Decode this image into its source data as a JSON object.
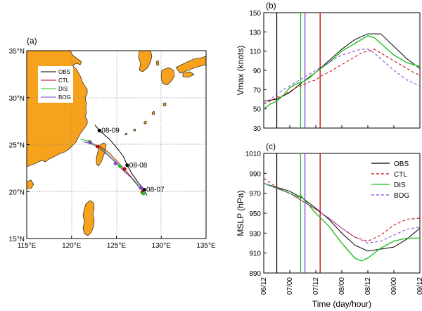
{
  "chart_data": [
    {
      "id": "a",
      "type": "map",
      "title": "(a)",
      "x_ticks": [
        "115°E",
        "120°E",
        "125°E",
        "130°E",
        "135°E"
      ],
      "y_ticks": [
        "15°N",
        "20°N",
        "25°N",
        "30°N",
        "35°N"
      ],
      "xlim": [
        115,
        135
      ],
      "ylim": [
        15,
        35
      ],
      "legend": [
        {
          "name": "OBS",
          "color": "#000000"
        },
        {
          "name": "CTL",
          "color": "#c00000"
        },
        {
          "name": "DIS",
          "color": "#22c022"
        },
        {
          "name": "BOG",
          "color": "#8a3fd1"
        }
      ],
      "date_labels": [
        {
          "text": "08-09",
          "lon": 123.1,
          "lat": 26.5
        },
        {
          "text": "08-08",
          "lon": 126.2,
          "lat": 22.8
        },
        {
          "text": "08-07",
          "lon": 128.1,
          "lat": 20.2
        }
      ],
      "tracks": {
        "OBS": [
          [
            128.4,
            19.6
          ],
          [
            128.1,
            20.2
          ],
          [
            127.4,
            21.0
          ],
          [
            126.8,
            21.8
          ],
          [
            126.2,
            22.8
          ],
          [
            125.8,
            23.7
          ],
          [
            125.1,
            24.6
          ],
          [
            124.2,
            25.6
          ],
          [
            123.1,
            26.5
          ],
          [
            122.6,
            27.1
          ]
        ],
        "CTL": [
          [
            128.0,
            19.9
          ],
          [
            127.3,
            20.8
          ],
          [
            126.6,
            21.6
          ],
          [
            125.9,
            22.4
          ],
          [
            125.0,
            23.3
          ],
          [
            124.2,
            24.1
          ],
          [
            123.3,
            24.7
          ],
          [
            122.4,
            25.1
          ],
          [
            121.7,
            25.4
          ]
        ],
        "DIS": [
          [
            128.1,
            19.8
          ],
          [
            127.4,
            20.6
          ],
          [
            126.6,
            21.5
          ],
          [
            125.7,
            22.4
          ],
          [
            124.8,
            23.3
          ],
          [
            123.8,
            24.2
          ],
          [
            122.8,
            24.9
          ],
          [
            121.8,
            25.4
          ],
          [
            121.0,
            25.6
          ]
        ],
        "BOG": [
          [
            128.2,
            19.7
          ],
          [
            127.6,
            20.5
          ],
          [
            126.9,
            21.3
          ],
          [
            125.9,
            22.1
          ],
          [
            125.0,
            23.0
          ],
          [
            124.0,
            23.9
          ],
          [
            123.1,
            24.6
          ],
          [
            122.2,
            25.1
          ],
          [
            121.3,
            25.3
          ]
        ]
      },
      "markers": [
        {
          "series": "OBS",
          "lon": 123.1,
          "lat": 26.5
        },
        {
          "series": "OBS",
          "lon": 126.2,
          "lat": 22.8
        },
        {
          "series": "OBS",
          "lon": 128.1,
          "lat": 20.2
        },
        {
          "series": "CTL",
          "lon": 122.9,
          "lat": 24.8
        },
        {
          "series": "CTL",
          "lon": 125.9,
          "lat": 22.4
        },
        {
          "series": "CTL",
          "lon": 127.9,
          "lat": 19.9
        },
        {
          "series": "DIS",
          "lon": 122.0,
          "lat": 25.3
        },
        {
          "series": "DIS",
          "lon": 125.4,
          "lat": 22.7
        },
        {
          "series": "DIS",
          "lon": 128.0,
          "lat": 19.8
        },
        {
          "series": "BOG",
          "lon": 122.1,
          "lat": 25.2
        },
        {
          "series": "BOG",
          "lon": 124.9,
          "lat": 23.0
        },
        {
          "series": "BOG",
          "lon": 127.7,
          "lat": 20.4
        }
      ]
    },
    {
      "id": "b",
      "type": "line",
      "title": "(b)",
      "ylabel": "Vmax (knots)",
      "xlabel": "",
      "xlim": [
        0,
        72
      ],
      "ylim": [
        30,
        150
      ],
      "y_ticks": [
        30,
        50,
        70,
        90,
        110,
        130,
        150
      ],
      "x_tick_hours": [
        0,
        12,
        24,
        36,
        48,
        60,
        72
      ],
      "vlines": [
        {
          "hour": 6,
          "color": "#000000"
        },
        {
          "hour": 17,
          "color": "#22c022"
        },
        {
          "hour": 19,
          "color": "#8a3fd1"
        },
        {
          "hour": 26,
          "color": "#c00000"
        }
      ],
      "series": [
        {
          "name": "OBS",
          "color": "#000000",
          "dash": "",
          "x": [
            0,
            6,
            12,
            18,
            24,
            30,
            36,
            42,
            48,
            54,
            60,
            66,
            72
          ],
          "values": [
            58,
            60,
            67,
            78,
            88,
            100,
            112,
            122,
            128,
            128,
            115,
            102,
            92
          ]
        },
        {
          "name": "CTL",
          "color": "#c00000",
          "dash": "4,3",
          "x": [
            0,
            3,
            6,
            9,
            12,
            15,
            18,
            21,
            24,
            27,
            30,
            33,
            36,
            39,
            42,
            45,
            48,
            51,
            54,
            57,
            60,
            63,
            66,
            69,
            72
          ],
          "values": [
            55,
            58,
            62,
            64,
            68,
            72,
            75,
            78,
            80,
            85,
            88,
            92,
            96,
            100,
            104,
            108,
            110,
            112,
            108,
            104,
            100,
            96,
            92,
            88,
            85
          ]
        },
        {
          "name": "DIS",
          "color": "#22c022",
          "dash": "",
          "x": [
            0,
            3,
            6,
            9,
            12,
            15,
            18,
            21,
            24,
            27,
            30,
            33,
            36,
            39,
            42,
            45,
            48,
            51,
            54,
            57,
            60,
            63,
            66,
            69,
            72
          ],
          "values": [
            50,
            55,
            58,
            64,
            72,
            76,
            78,
            82,
            88,
            93,
            98,
            104,
            110,
            114,
            118,
            122,
            126,
            124,
            118,
            112,
            106,
            102,
            98,
            96,
            94
          ]
        },
        {
          "name": "BOG",
          "color": "#8a3fd1",
          "dash": "4,3",
          "x": [
            0,
            3,
            6,
            9,
            12,
            15,
            18,
            21,
            24,
            27,
            30,
            33,
            36,
            39,
            42,
            45,
            48,
            51,
            54,
            57,
            60,
            63,
            66,
            69,
            72
          ],
          "values": [
            55,
            60,
            65,
            70,
            74,
            78,
            82,
            86,
            90,
            94,
            98,
            102,
            106,
            108,
            110,
            112,
            112,
            108,
            102,
            96,
            90,
            85,
            80,
            77,
            74
          ]
        }
      ]
    },
    {
      "id": "c",
      "type": "line",
      "title": "(c)",
      "ylabel": "MSLP (hPa)",
      "xlabel": "Time (day/hour)",
      "xlim": [
        0,
        72
      ],
      "ylim": [
        890,
        1010
      ],
      "y_ticks": [
        890,
        910,
        930,
        950,
        970,
        990,
        1010
      ],
      "x_ticks": [
        "06/12",
        "07/00",
        "07/12",
        "08/00",
        "08/12",
        "09/00",
        "09/12"
      ],
      "x_tick_hours": [
        0,
        12,
        24,
        36,
        48,
        60,
        72
      ],
      "vlines": [
        {
          "hour": 6,
          "color": "#000000"
        },
        {
          "hour": 17,
          "color": "#22c022"
        },
        {
          "hour": 19,
          "color": "#8a3fd1"
        },
        {
          "hour": 26,
          "color": "#c00000"
        }
      ],
      "legend": [
        "OBS",
        "CTL",
        "DIS",
        "BOG"
      ],
      "series": [
        {
          "name": "OBS",
          "color": "#000000",
          "dash": "",
          "x": [
            0,
            6,
            12,
            18,
            24,
            30,
            36,
            42,
            48,
            54,
            60,
            66,
            72
          ],
          "values": [
            980,
            976,
            972,
            965,
            955,
            944,
            930,
            918,
            912,
            914,
            916,
            924,
            935
          ]
        },
        {
          "name": "CTL",
          "color": "#c00000",
          "dash": "4,3",
          "x": [
            0,
            6,
            12,
            18,
            24,
            30,
            36,
            42,
            48,
            54,
            60,
            66,
            72
          ],
          "values": [
            985,
            976,
            970,
            962,
            954,
            945,
            935,
            926,
            922,
            928,
            938,
            944,
            945
          ]
        },
        {
          "name": "DIS",
          "color": "#22c022",
          "dash": "",
          "x": [
            0,
            6,
            12,
            16,
            17,
            20,
            24,
            30,
            36,
            42,
            45,
            48,
            54,
            60,
            66,
            72
          ],
          "values": [
            980,
            975,
            970,
            966,
            968,
            960,
            950,
            937,
            920,
            905,
            902,
            905,
            915,
            922,
            925,
            925
          ]
        },
        {
          "name": "BOG",
          "color": "#8a3fd1",
          "dash": "4,3",
          "x": [
            0,
            6,
            12,
            18,
            24,
            30,
            36,
            42,
            48,
            54,
            60,
            66,
            72
          ],
          "values": [
            980,
            975,
            970,
            962,
            954,
            945,
            935,
            926,
            920,
            922,
            928,
            934,
            936
          ]
        }
      ]
    }
  ]
}
